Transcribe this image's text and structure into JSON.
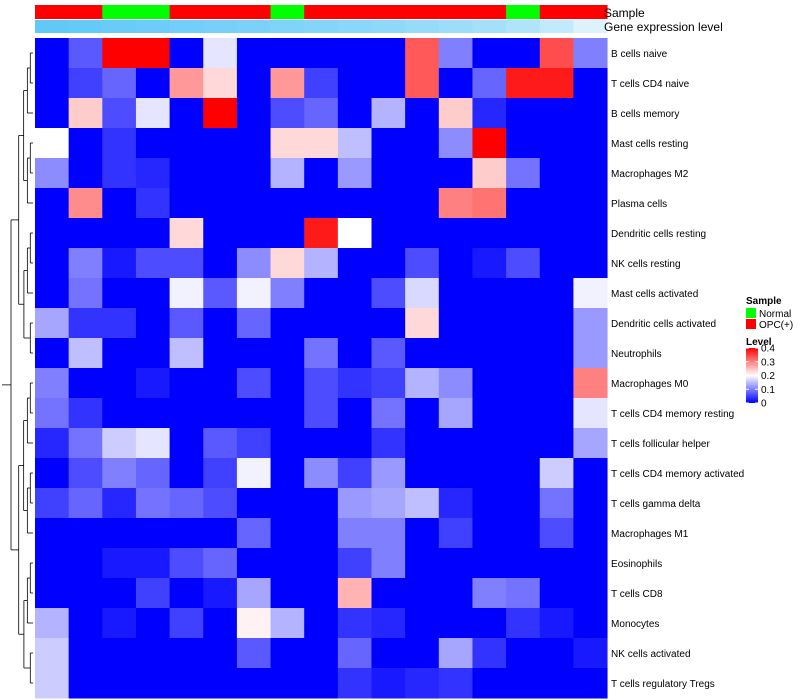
{
  "chart_data": {
    "type": "heatmap",
    "annotation_tracks": [
      "Sample",
      "Gene expression level"
    ],
    "samples": [
      "OPC(+)",
      "OPC(+)",
      "Normal",
      "Normal",
      "OPC(+)",
      "OPC(+)",
      "OPC(+)",
      "Normal",
      "OPC(+)",
      "OPC(+)",
      "OPC(+)",
      "OPC(+)",
      "OPC(+)",
      "OPC(+)",
      "Normal",
      "OPC(+)",
      "OPC(+)"
    ],
    "gene_expression_level": [
      0.9,
      0.88,
      0.86,
      0.83,
      0.8,
      0.78,
      0.75,
      0.72,
      0.7,
      0.67,
      0.64,
      0.6,
      0.56,
      0.52,
      0.45,
      0.35,
      0.2
    ],
    "rows": [
      "B cells naive",
      "T cells CD4 naive",
      "B cells memory",
      "Mast cells resting",
      "Macrophages M2",
      "Plasma cells",
      "Dendritic cells resting",
      "NK cells resting",
      "Mast cells activated",
      "Dendritic cells activated",
      "Neutrophils",
      "Macrophages M0",
      "T cells CD4 memory resting",
      "T cells follicular helper",
      "T cells CD4 memory activated",
      "T cells gamma delta",
      "Macrophages M1",
      "Eosinophils",
      "T cells CD8",
      "Monocytes",
      "NK cells activated",
      "T cells regulatory  Tregs"
    ],
    "values": [
      [
        0.0,
        0.07,
        0.4,
        0.4,
        0.0,
        0.18,
        0.0,
        0.0,
        0.0,
        0.0,
        0.0,
        0.33,
        0.1,
        0.0,
        0.0,
        0.34,
        0.1
      ],
      [
        0.0,
        0.05,
        0.08,
        0.0,
        0.28,
        0.23,
        0.0,
        0.28,
        0.05,
        0.0,
        0.0,
        0.33,
        0.0,
        0.08,
        0.38,
        0.38,
        0.0
      ],
      [
        0.0,
        0.24,
        0.06,
        0.18,
        0.0,
        0.4,
        0.0,
        0.06,
        0.08,
        0.0,
        0.14,
        0.0,
        0.24,
        0.03,
        0.0,
        0.0,
        0.0
      ],
      [
        0.2,
        0.0,
        0.04,
        0.0,
        0.0,
        0.0,
        0.0,
        0.23,
        0.23,
        0.15,
        0.0,
        0.0,
        0.11,
        0.4,
        0.0,
        0.0,
        0.0
      ],
      [
        0.11,
        0.0,
        0.04,
        0.03,
        0.0,
        0.0,
        0.0,
        0.14,
        0.0,
        0.12,
        0.0,
        0.0,
        0.0,
        0.24,
        0.09,
        0.0,
        0.0
      ],
      [
        0.0,
        0.29,
        0.0,
        0.04,
        0.0,
        0.0,
        0.0,
        0.0,
        0.0,
        0.0,
        0.0,
        0.0,
        0.3,
        0.31,
        0.0,
        0.0,
        0.0
      ],
      [
        0.0,
        0.0,
        0.0,
        0.0,
        0.23,
        0.0,
        0.0,
        0.0,
        0.38,
        0.2,
        0.0,
        0.0,
        0.0,
        0.0,
        0.0,
        0.0,
        0.0
      ],
      [
        0.0,
        0.1,
        0.02,
        0.06,
        0.06,
        0.0,
        0.11,
        0.23,
        0.14,
        0.0,
        0.0,
        0.06,
        0.0,
        0.02,
        0.06,
        0.0,
        0.0
      ],
      [
        0.0,
        0.09,
        0.0,
        0.0,
        0.19,
        0.07,
        0.19,
        0.1,
        0.0,
        0.0,
        0.06,
        0.17,
        0.0,
        0.0,
        0.0,
        0.0,
        0.19
      ],
      [
        0.13,
        0.04,
        0.04,
        0.0,
        0.07,
        0.0,
        0.08,
        0.0,
        0.0,
        0.0,
        0.0,
        0.23,
        0.0,
        0.0,
        0.0,
        0.0,
        0.12
      ],
      [
        0.0,
        0.15,
        0.0,
        0.0,
        0.15,
        0.0,
        0.0,
        0.0,
        0.09,
        0.0,
        0.07,
        0.0,
        0.0,
        0.0,
        0.0,
        0.0,
        0.12
      ],
      [
        0.1,
        0.0,
        0.0,
        0.02,
        0.0,
        0.0,
        0.06,
        0.0,
        0.06,
        0.04,
        0.05,
        0.14,
        0.11,
        0.0,
        0.0,
        0.0,
        0.3
      ],
      [
        0.09,
        0.04,
        0.0,
        0.0,
        0.0,
        0.0,
        0.0,
        0.0,
        0.06,
        0.0,
        0.09,
        0.0,
        0.13,
        0.0,
        0.0,
        0.0,
        0.18
      ],
      [
        0.03,
        0.09,
        0.16,
        0.18,
        0.0,
        0.07,
        0.05,
        0.0,
        0.0,
        0.0,
        0.04,
        0.0,
        0.0,
        0.0,
        0.0,
        0.0,
        0.13
      ],
      [
        0.0,
        0.06,
        0.1,
        0.08,
        0.0,
        0.05,
        0.19,
        0.0,
        0.11,
        0.05,
        0.12,
        0.0,
        0.0,
        0.0,
        0.0,
        0.16,
        0.0
      ],
      [
        0.05,
        0.08,
        0.03,
        0.09,
        0.08,
        0.06,
        0.0,
        0.0,
        0.0,
        0.12,
        0.13,
        0.15,
        0.03,
        0.0,
        0.0,
        0.09,
        0.0
      ],
      [
        0.0,
        0.0,
        0.0,
        0.0,
        0.0,
        0.0,
        0.08,
        0.0,
        0.0,
        0.1,
        0.1,
        0.0,
        0.05,
        0.0,
        0.0,
        0.06,
        0.0
      ],
      [
        0.0,
        0.0,
        0.02,
        0.02,
        0.06,
        0.08,
        0.0,
        0.0,
        0.0,
        0.05,
        0.1,
        0.0,
        0.0,
        0.0,
        0.0,
        0.0,
        0.0
      ],
      [
        0.0,
        0.0,
        0.0,
        0.05,
        0.0,
        0.02,
        0.13,
        0.0,
        0.0,
        0.26,
        0.0,
        0.0,
        0.0,
        0.1,
        0.09,
        0.0,
        0.0
      ],
      [
        0.14,
        0.0,
        0.02,
        0.0,
        0.05,
        0.0,
        0.21,
        0.14,
        0.0,
        0.04,
        0.03,
        0.0,
        0.0,
        0.0,
        0.04,
        0.02,
        0.0
      ],
      [
        0.16,
        0.0,
        0.0,
        0.0,
        0.0,
        0.0,
        0.07,
        0.0,
        0.0,
        0.08,
        0.0,
        0.0,
        0.13,
        0.04,
        0.0,
        0.0,
        0.02
      ],
      [
        0.16,
        0.0,
        0.0,
        0.0,
        0.0,
        0.0,
        0.0,
        0.0,
        0.0,
        0.04,
        0.02,
        0.03,
        0.04,
        0.0,
        0.0,
        0.0,
        0.0
      ]
    ],
    "color_scale": {
      "min": 0,
      "max": 0.4,
      "low": "#0000ff",
      "mid": "#ffffff",
      "high": "#ff0000"
    },
    "legend": {
      "sample_title": "Sample",
      "sample_entries": [
        {
          "label": "Normal",
          "color": "#00ff00"
        },
        {
          "label": "OPC(+)",
          "color": "#ff0000"
        }
      ],
      "level_title": "Level",
      "level_ticks": [
        "0.4",
        "0.3",
        "0.2",
        "0.1",
        "0"
      ],
      "level_tick_values": [
        0.4,
        0.3,
        0.2,
        0.1,
        0
      ],
      "placement": "right"
    },
    "gene_expression_colors": {
      "low": "#ffffff",
      "high": "#4fc3f7"
    },
    "dendrogram": "rows"
  }
}
